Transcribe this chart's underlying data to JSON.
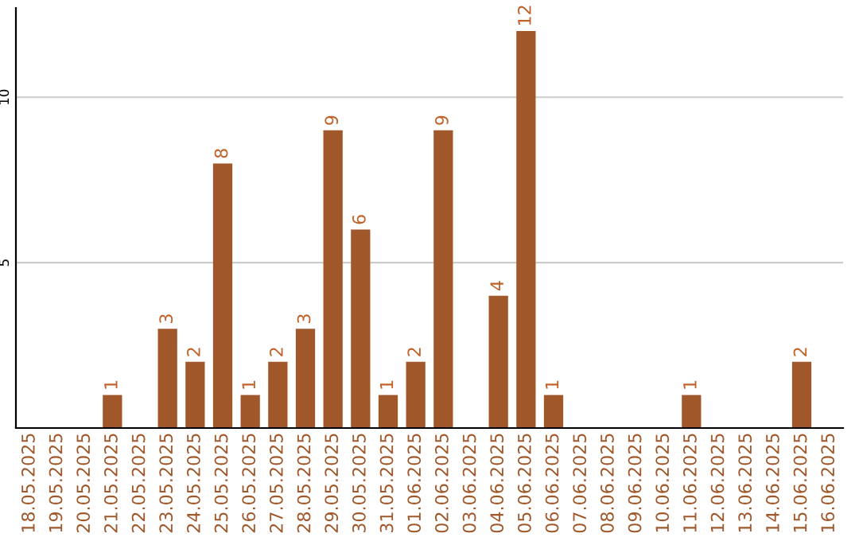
{
  "chart_data": {
    "type": "bar",
    "categories": [
      "18.05.2025",
      "19.05.2025",
      "20.05.2025",
      "21.05.2025",
      "22.05.2025",
      "23.05.2025",
      "24.05.2025",
      "25.05.2025",
      "26.05.2025",
      "27.05.2025",
      "28.05.2025",
      "29.05.2025",
      "30.05.2025",
      "31.05.2025",
      "01.06.2025",
      "02.06.2025",
      "03.06.2025",
      "04.06.2025",
      "05.06.2025",
      "06.06.2025",
      "07.06.2025",
      "08.06.2025",
      "09.06.2025",
      "10.06.2025",
      "11.06.2025",
      "12.06.2025",
      "13.06.2025",
      "14.06.2025",
      "15.06.2025",
      "16.06.2025"
    ],
    "values": [
      0,
      0,
      0,
      1,
      0,
      3,
      2,
      8,
      1,
      2,
      3,
      9,
      6,
      1,
      2,
      9,
      0,
      4,
      12,
      1,
      0,
      0,
      0,
      0,
      1,
      0,
      0,
      0,
      2,
      0
    ],
    "value_labels": [
      null,
      null,
      null,
      "1",
      null,
      "3",
      "2",
      "8",
      "1",
      "2",
      "3",
      "9",
      "6",
      "1",
      "2",
      "9",
      null,
      "4",
      "12",
      "1",
      null,
      null,
      null,
      null,
      "1",
      null,
      null,
      null,
      "2",
      null
    ],
    "color": "#a0572a",
    "ylim": [
      0,
      12.7
    ],
    "yticks": [
      5,
      10
    ],
    "grid": "y"
  }
}
